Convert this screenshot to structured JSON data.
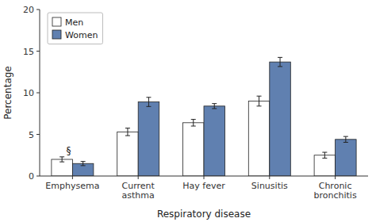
{
  "chart_data": {
    "type": "bar",
    "xlabel": "Respiratory disease",
    "ylabel": "Percentage",
    "categories": [
      "Emphysema",
      "Current\nasthma",
      "Hay fever",
      "Sinusitis",
      "Chronic\nbronchitis"
    ],
    "series": [
      {
        "name": "Men",
        "color": "#ffffff",
        "values": [
          2.0,
          5.3,
          6.4,
          9.0,
          2.5
        ],
        "errors": [
          0.3,
          0.45,
          0.4,
          0.6,
          0.35
        ]
      },
      {
        "name": "Women",
        "color": "#6080b0",
        "values": [
          1.5,
          8.9,
          8.4,
          13.7,
          4.4
        ],
        "errors": [
          0.25,
          0.55,
          0.3,
          0.55,
          0.35
        ]
      }
    ],
    "annotations": [
      {
        "text": "§",
        "category": "Emphysema",
        "series": "Men"
      }
    ],
    "ylim": [
      0,
      20
    ],
    "yticks": [
      0,
      5,
      10,
      15,
      20
    ],
    "legend": "upper left",
    "grid": false
  }
}
